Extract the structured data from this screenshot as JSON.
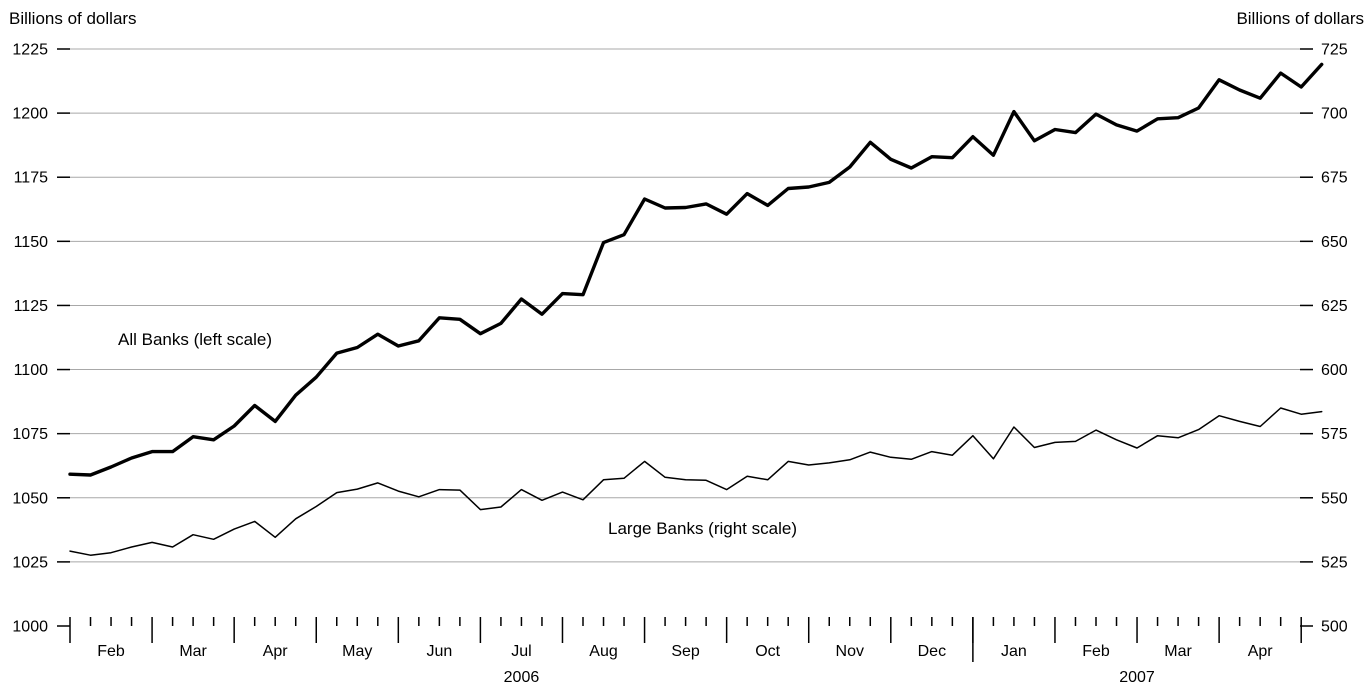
{
  "chart_data": {
    "type": "line",
    "left_axis": {
      "label": "Billions of dollars",
      "ylim": [
        1000,
        1225
      ],
      "ticks": [
        1000,
        1025,
        1050,
        1075,
        1100,
        1125,
        1150,
        1175,
        1200,
        1225
      ]
    },
    "right_axis": {
      "label": "Billions of dollars",
      "ylim": [
        500,
        725
      ],
      "ticks": [
        500,
        525,
        550,
        575,
        600,
        625,
        650,
        675,
        700,
        725
      ]
    },
    "grid": true,
    "x_axis": {
      "months": [
        {
          "label": "Feb",
          "weeks": 4
        },
        {
          "label": "Mar",
          "weeks": 4
        },
        {
          "label": "Apr",
          "weeks": 4
        },
        {
          "label": "May",
          "weeks": 4
        },
        {
          "label": "Jun",
          "weeks": 4
        },
        {
          "label": "Jul",
          "weeks": 4
        },
        {
          "label": "Aug",
          "weeks": 4
        },
        {
          "label": "Sep",
          "weeks": 4
        },
        {
          "label": "Oct",
          "weeks": 4
        },
        {
          "label": "Nov",
          "weeks": 4
        },
        {
          "label": "Dec",
          "weeks": 4
        },
        {
          "label": "Jan",
          "weeks": 4
        },
        {
          "label": "Feb",
          "weeks": 4
        },
        {
          "label": "Mar",
          "weeks": 4
        },
        {
          "label": "Apr",
          "weeks": 4
        }
      ],
      "years": [
        {
          "label": "2006",
          "first_month": 0,
          "last_month": 10
        },
        {
          "label": "2007",
          "first_month": 11,
          "last_month": 14
        }
      ]
    },
    "annotations": [
      {
        "id": "all",
        "text": "All Banks (left scale)"
      },
      {
        "id": "large",
        "text": "Large Banks (right scale)"
      }
    ],
    "series": [
      {
        "name": "All Banks (left scale)",
        "axis": "left",
        "stroke": "#000000",
        "weight": "bold",
        "values": [
          1059.2,
          1058.9,
          1062,
          1065.5,
          1068,
          1068,
          1073.8,
          1072.6,
          1078,
          1086,
          1079.8,
          1090,
          1097,
          1106.4,
          1108.6,
          1113.8,
          1109.2,
          1111.2,
          1120.2,
          1119.6,
          1114,
          1118,
          1127.5,
          1121.6,
          1129.6,
          1129.2,
          1149.5,
          1152.6,
          1166.5,
          1163,
          1163.2,
          1164.6,
          1160.6,
          1168.6,
          1164,
          1170.6,
          1171.2,
          1173,
          1179,
          1188.6,
          1182,
          1178.6,
          1183,
          1182.6,
          1190.8,
          1183.6,
          1200.6,
          1189.2,
          1193.6,
          1192.4,
          1199.6,
          1195.4,
          1193,
          1197.8,
          1198.2,
          1202,
          1213,
          1209,
          1205.8,
          1215.6,
          1210.2,
          1219
        ]
      },
      {
        "name": "Large Banks (right scale)",
        "axis": "right",
        "stroke": "#000000",
        "weight": "thin",
        "values": [
          529.2,
          527.6,
          528.6,
          530.8,
          532.6,
          530.8,
          535.6,
          533.8,
          537.8,
          540.8,
          534.6,
          541.8,
          546.6,
          552,
          553.4,
          555.8,
          552.6,
          550.4,
          553.2,
          553,
          545.4,
          546.4,
          553.2,
          549,
          552.2,
          549.2,
          557,
          557.6,
          564.2,
          558,
          557,
          556.8,
          553.2,
          558.4,
          557,
          564.2,
          562.8,
          563.6,
          564.8,
          567.8,
          565.8,
          565,
          568,
          566.6,
          574.2,
          565.2,
          577.6,
          569.6,
          571.6,
          572,
          576.4,
          572.6,
          569.4,
          574.2,
          573.4,
          576.6,
          582,
          579.8,
          577.8,
          585,
          582.6,
          583.6
        ]
      }
    ]
  }
}
